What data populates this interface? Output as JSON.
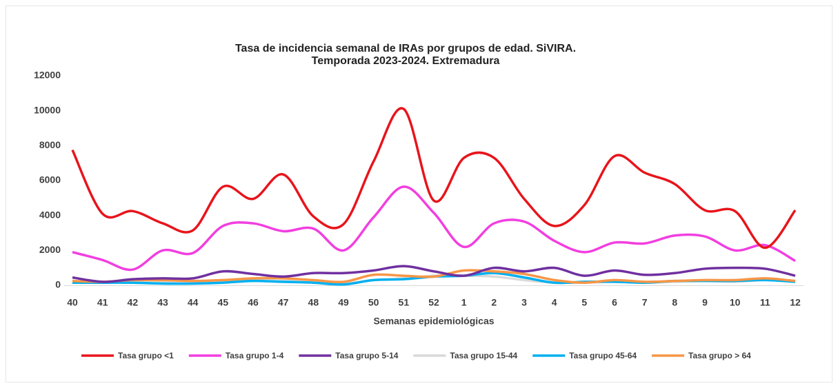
{
  "chart_data": {
    "type": "line",
    "title": [
      "Tasa de incidencia semanal de IRAs por grupos de edad. SiVIRA.",
      "Temporada 2023-2024. Extremadura"
    ],
    "x_label": "Semanas epidemiológicas",
    "categories": [
      "40",
      "41",
      "42",
      "43",
      "44",
      "45",
      "46",
      "47",
      "48",
      "49",
      "50",
      "51",
      "52",
      "1",
      "2",
      "3",
      "4",
      "5",
      "6",
      "7",
      "8",
      "9",
      "10",
      "11",
      "12"
    ],
    "ylim": [
      0,
      12000
    ],
    "yticks": [
      0,
      2000,
      4000,
      6000,
      8000,
      10000,
      12000
    ],
    "grid": false,
    "legend": "bottom",
    "series": [
      {
        "name": "Tasa grupo <1",
        "color": "#e8141b",
        "values": [
          7750,
          4100,
          4250,
          3550,
          3150,
          5650,
          4950,
          6350,
          3950,
          3500,
          7100,
          10100,
          4850,
          7300,
          7300,
          4950,
          3400,
          4600,
          7400,
          6450,
          5800,
          4300,
          4250,
          2150,
          4300
        ]
      },
      {
        "name": "Tasa grupo 1-4",
        "color": "#f23ee0",
        "values": [
          1900,
          1450,
          900,
          2000,
          1850,
          3400,
          3550,
          3100,
          3250,
          2000,
          3900,
          5650,
          4150,
          2200,
          3550,
          3650,
          2550,
          1900,
          2450,
          2400,
          2850,
          2800,
          2000,
          2300,
          1400
        ]
      },
      {
        "name": "Tasa grupo 5-14",
        "color": "#7030a0",
        "values": [
          450,
          200,
          350,
          400,
          400,
          800,
          650,
          500,
          700,
          700,
          850,
          1100,
          800,
          550,
          1000,
          800,
          1000,
          550,
          850,
          600,
          700,
          950,
          1000,
          950,
          550
        ]
      },
      {
        "name": "Tasa grupo 15-44",
        "color": "#d9d9d9",
        "values": [
          150,
          150,
          200,
          200,
          150,
          200,
          300,
          250,
          200,
          100,
          300,
          400,
          550,
          550,
          500,
          300,
          150,
          150,
          200,
          150,
          200,
          250,
          200,
          300,
          200
        ]
      },
      {
        "name": "Tasa grupo 45-64",
        "color": "#00b0f0",
        "values": [
          150,
          150,
          150,
          100,
          100,
          150,
          250,
          200,
          150,
          50,
          300,
          350,
          500,
          550,
          700,
          450,
          150,
          200,
          200,
          150,
          250,
          250,
          250,
          300,
          200
        ]
      },
      {
        "name": "Tasa grupo > 64",
        "color": "#f79646",
        "values": [
          250,
          200,
          300,
          300,
          250,
          300,
          400,
          400,
          300,
          200,
          600,
          550,
          500,
          850,
          800,
          650,
          300,
          150,
          300,
          200,
          250,
          300,
          300,
          400,
          250
        ]
      }
    ]
  }
}
